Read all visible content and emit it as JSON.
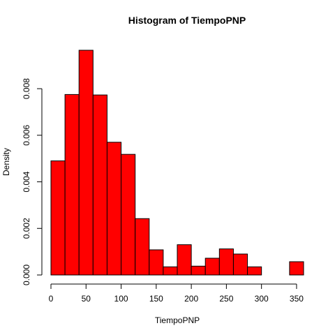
{
  "chart_data": {
    "type": "bar",
    "title": "Histogram of TiempoPNP",
    "xlabel": "TiempoPNP",
    "ylabel": "Density",
    "bin_width": 20,
    "bins": [
      {
        "from": 0,
        "to": 20,
        "density": 0.0049
      },
      {
        "from": 20,
        "to": 40,
        "density": 0.00775
      },
      {
        "from": 40,
        "to": 60,
        "density": 0.00965
      },
      {
        "from": 60,
        "to": 80,
        "density": 0.00773
      },
      {
        "from": 80,
        "to": 100,
        "density": 0.0057
      },
      {
        "from": 100,
        "to": 120,
        "density": 0.00518
      },
      {
        "from": 120,
        "to": 140,
        "density": 0.00242
      },
      {
        "from": 140,
        "to": 160,
        "density": 0.00108
      },
      {
        "from": 160,
        "to": 180,
        "density": 0.00035
      },
      {
        "from": 180,
        "to": 200,
        "density": 0.0013
      },
      {
        "from": 200,
        "to": 220,
        "density": 0.00038
      },
      {
        "from": 220,
        "to": 240,
        "density": 0.00072
      },
      {
        "from": 240,
        "to": 260,
        "density": 0.00112
      },
      {
        "from": 260,
        "to": 280,
        "density": 0.0009
      },
      {
        "from": 280,
        "to": 300,
        "density": 0.00035
      },
      {
        "from": 300,
        "to": 320,
        "density": 0.0
      },
      {
        "from": 320,
        "to": 340,
        "density": 0.0
      },
      {
        "from": 340,
        "to": 360,
        "density": 0.00057
      }
    ],
    "xticks": [
      0,
      50,
      100,
      150,
      200,
      250,
      300,
      350
    ],
    "yticks": [
      "0.000",
      "0.002",
      "0.004",
      "0.006",
      "0.008"
    ],
    "xlim": [
      0,
      360
    ],
    "ylim": [
      0,
      0.00965
    ],
    "bar_color": "#ff0000",
    "grid": false,
    "legend": "none"
  }
}
